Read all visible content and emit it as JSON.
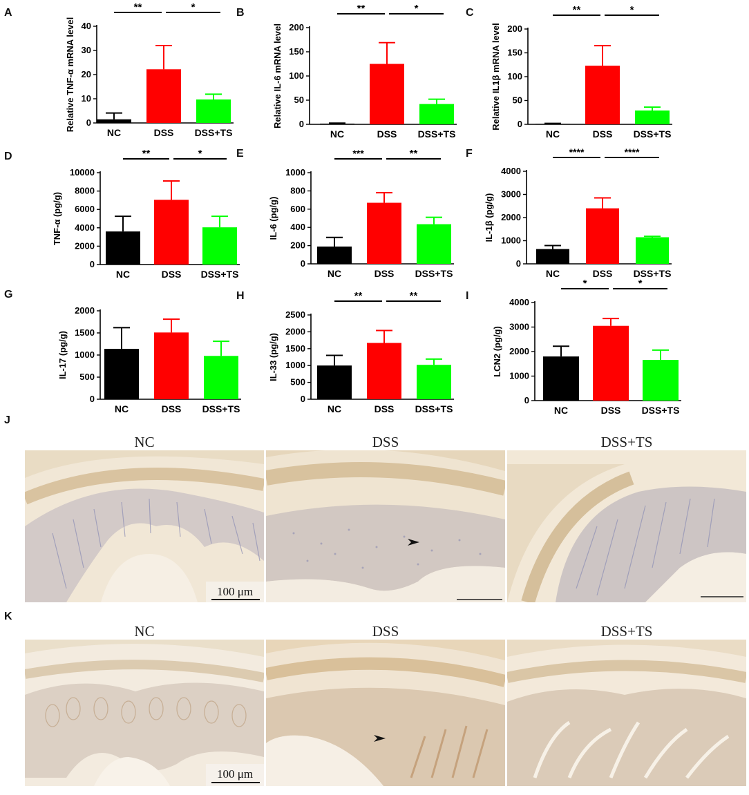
{
  "panel_letters": {
    "A": "A",
    "B": "B",
    "C": "C",
    "D": "D",
    "E": "E",
    "F": "F",
    "G": "G",
    "H": "H",
    "I": "I",
    "J": "J",
    "K": "K"
  },
  "colors": {
    "NC": "#000000",
    "DSS": "#ff0000",
    "DSS+TS": "#00ff00"
  },
  "chart_data": [
    {
      "panel": "A",
      "type": "bar",
      "categories": [
        "NC",
        "DSS",
        "DSS+TS"
      ],
      "values": [
        1.5,
        22.2,
        9.7
      ],
      "errors": [
        2.6,
        9.8,
        2.2
      ],
      "ylabel": "Relative TNF-α mRNA level",
      "ylim": [
        0,
        40
      ],
      "yticks": [
        0,
        10,
        20,
        30,
        40
      ],
      "ytick_labels": [
        "0",
        "10",
        "20",
        "30",
        "40"
      ],
      "significance": [
        {
          "from": 0,
          "to": 1,
          "label": "**"
        },
        {
          "from": 1,
          "to": 2,
          "label": "*"
        }
      ]
    },
    {
      "panel": "B",
      "type": "bar",
      "categories": [
        "NC",
        "DSS",
        "DSS+TS"
      ],
      "values": [
        1.5,
        125.0,
        42.0
      ],
      "errors": [
        1.0,
        44.0,
        10.0
      ],
      "ylabel": "Relative IL-6 mRNA level",
      "ylim": [
        0,
        200
      ],
      "yticks": [
        0,
        50,
        100,
        150,
        200
      ],
      "ytick_labels": [
        "0",
        "50",
        "100",
        "150",
        "200"
      ],
      "significance": [
        {
          "from": 0,
          "to": 1,
          "label": "**"
        },
        {
          "from": 1,
          "to": 2,
          "label": "*"
        }
      ]
    },
    {
      "panel": "C",
      "type": "bar",
      "categories": [
        "NC",
        "DSS",
        "DSS+TS"
      ],
      "values": [
        1.0,
        123.0,
        29.0
      ],
      "errors": [
        1.0,
        42.0,
        7.0
      ],
      "ylabel": "Relative IL1β mRNA level",
      "ylim": [
        0,
        200
      ],
      "yticks": [
        0,
        50,
        100,
        150,
        200
      ],
      "ytick_labels": [
        "0",
        "50",
        "100",
        "150",
        "200"
      ],
      "significance": [
        {
          "from": 0,
          "to": 1,
          "label": "**"
        },
        {
          "from": 1,
          "to": 2,
          "label": "*"
        }
      ]
    },
    {
      "panel": "D",
      "type": "bar",
      "categories": [
        "NC",
        "DSS",
        "DSS+TS"
      ],
      "values": [
        3600,
        7050,
        4050
      ],
      "errors": [
        1650,
        2050,
        1200
      ],
      "ylabel": "TNF-α (pg/g)",
      "ylim": [
        0,
        10000
      ],
      "yticks": [
        0,
        2000,
        4000,
        6000,
        8000,
        10000
      ],
      "ytick_labels": [
        "0",
        "2000",
        "4000",
        "6000",
        "8000",
        "10000"
      ],
      "significance": [
        {
          "from": 0,
          "to": 1,
          "label": "**"
        },
        {
          "from": 1,
          "to": 2,
          "label": "*"
        }
      ]
    },
    {
      "panel": "E",
      "type": "bar",
      "categories": [
        "NC",
        "DSS",
        "DSS+TS"
      ],
      "values": [
        190,
        670,
        435
      ],
      "errors": [
        100,
        110,
        75
      ],
      "ylabel": "IL-6 (pg/g)",
      "ylim": [
        0,
        1000
      ],
      "yticks": [
        0,
        200,
        400,
        600,
        800,
        1000
      ],
      "ytick_labels": [
        "0",
        "200",
        "400",
        "600",
        "800",
        "1000"
      ],
      "significance": [
        {
          "from": 0,
          "to": 1,
          "label": "***"
        },
        {
          "from": 1,
          "to": 2,
          "label": "**"
        }
      ]
    },
    {
      "panel": "F",
      "type": "bar",
      "categories": [
        "NC",
        "DSS",
        "DSS+TS"
      ],
      "values": [
        640,
        2400,
        1150
      ],
      "errors": [
        150,
        450,
        40
      ],
      "ylabel": "IL-1β (pg/g)",
      "ylim": [
        0,
        4000
      ],
      "yticks": [
        0,
        1000,
        2000,
        3000,
        4000
      ],
      "ytick_labels": [
        "0",
        "1000",
        "2000",
        "3000",
        "4000"
      ],
      "significance": [
        {
          "from": 0,
          "to": 1,
          "label": "****"
        },
        {
          "from": 1,
          "to": 2,
          "label": "****"
        }
      ]
    },
    {
      "panel": "G",
      "type": "bar",
      "categories": [
        "NC",
        "DSS",
        "DSS+TS"
      ],
      "values": [
        1140,
        1510,
        980
      ],
      "errors": [
        480,
        300,
        330
      ],
      "ylabel": "IL-17 (pg/g)",
      "ylim": [
        0,
        2000
      ],
      "yticks": [
        0,
        500,
        1000,
        1500,
        2000
      ],
      "ytick_labels": [
        "0",
        "500",
        "1000",
        "1500",
        "2000"
      ],
      "significance": []
    },
    {
      "panel": "H",
      "type": "bar",
      "categories": [
        "NC",
        "DSS",
        "DSS+TS"
      ],
      "values": [
        1000,
        1670,
        1020
      ],
      "errors": [
        300,
        370,
        170
      ],
      "ylabel": "IL-33 (pg/g)",
      "ylim": [
        0,
        2500
      ],
      "yticks": [
        0,
        500,
        1000,
        1500,
        2000,
        2500
      ],
      "ytick_labels": [
        "0",
        "500",
        "1000",
        "1500",
        "2000",
        "2500"
      ],
      "significance": [
        {
          "from": 0,
          "to": 1,
          "label": "**"
        },
        {
          "from": 1,
          "to": 2,
          "label": "**"
        }
      ]
    },
    {
      "panel": "I",
      "type": "bar",
      "categories": [
        "NC",
        "DSS",
        "DSS+TS"
      ],
      "values": [
        1800,
        3050,
        1660
      ],
      "errors": [
        420,
        300,
        400
      ],
      "ylabel": "LCN2 (pg/g)",
      "ylim": [
        0,
        4000
      ],
      "yticks": [
        0,
        1000,
        2000,
        3000,
        4000
      ],
      "ytick_labels": [
        "0",
        "1000",
        "2000",
        "3000",
        "4000"
      ],
      "significance": [
        {
          "from": 0,
          "to": 1,
          "label": "*"
        },
        {
          "from": 1,
          "to": 2,
          "label": "*"
        }
      ]
    }
  ],
  "micrographs": {
    "J": {
      "titles": [
        "NC",
        "DSS",
        "DSS+TS"
      ],
      "scale_label": "100 μm"
    },
    "K": {
      "titles": [
        "NC",
        "DSS",
        "DSS+TS"
      ],
      "scale_label": "100 μm"
    }
  }
}
